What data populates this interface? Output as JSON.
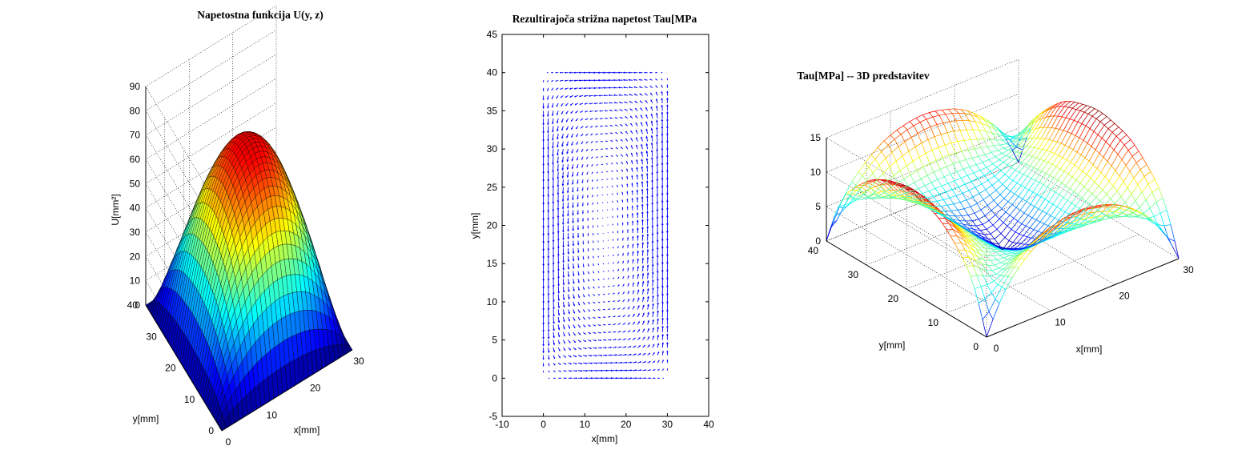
{
  "figure": {
    "background": "#ffffff",
    "colormap": "jet"
  },
  "chart_data": [
    {
      "type": "surface",
      "title": "Napetostna funkcija U(y, z)",
      "xlabel": "x[mm]",
      "ylabel": "y[mm]",
      "zlabel": "U[mm²]",
      "xlim": [
        0,
        30
      ],
      "ylim": [
        0,
        40
      ],
      "zlim": [
        0,
        90
      ],
      "xticks": [
        "0",
        "10",
        "20",
        "30"
      ],
      "yticks": [
        "0",
        "10",
        "20",
        "30",
        "40"
      ],
      "zticks": [
        "0",
        "10",
        "20",
        "30",
        "40",
        "50",
        "60",
        "70",
        "80",
        "90"
      ],
      "peak": {
        "x": 15,
        "y": 20,
        "z": 77
      },
      "colormap": "jet",
      "edge_color": "#000000",
      "grid": true
    },
    {
      "type": "quiver",
      "title": "Rezultirajoča strižna napetost Tau[MPa",
      "xlabel": "x[mm]",
      "ylabel": "y[mm]",
      "xlim": [
        -10,
        40
      ],
      "ylim": [
        -5,
        45
      ],
      "xticks": [
        "-10",
        "0",
        "10",
        "20",
        "30",
        "40"
      ],
      "yticks": [
        "-5",
        "0",
        "5",
        "10",
        "15",
        "20",
        "25",
        "30",
        "35",
        "40",
        "45"
      ],
      "field_region": {
        "x": [
          0,
          30
        ],
        "y": [
          0,
          40
        ]
      },
      "grid_step": {
        "x": 1.2,
        "y": 1.0
      },
      "max_tau": 14.5,
      "arrow_color": "#0000ff",
      "grid": false
    },
    {
      "type": "mesh",
      "title": "Tau[MPa] -- 3D predstavitev",
      "xlabel": "x[mm]",
      "ylabel": "y[mm]",
      "xlim": [
        0,
        30
      ],
      "ylim": [
        0,
        40
      ],
      "zlim": [
        0,
        15
      ],
      "xticks": [
        "0",
        "10",
        "20",
        "30"
      ],
      "yticks": [
        "0",
        "10",
        "20",
        "30",
        "40"
      ],
      "zticks": [
        "0",
        "5",
        "10",
        "15"
      ],
      "max_tau": 14.5,
      "colormap": "jet",
      "grid": true
    }
  ]
}
